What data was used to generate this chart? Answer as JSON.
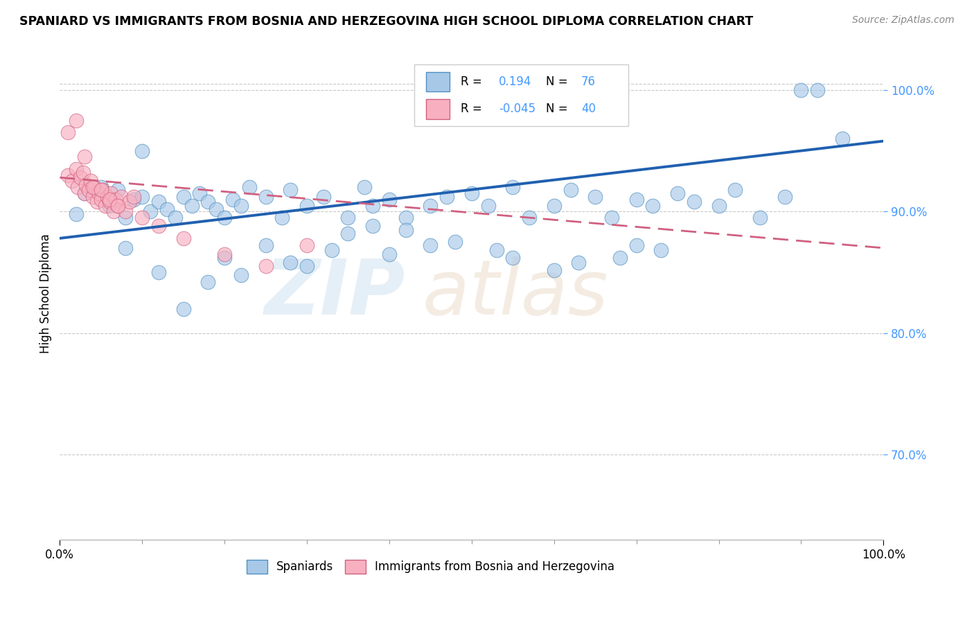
{
  "title": "SPANIARD VS IMMIGRANTS FROM BOSNIA AND HERZEGOVINA HIGH SCHOOL DIPLOMA CORRELATION CHART",
  "source": "Source: ZipAtlas.com",
  "ylabel": "High School Diploma",
  "xlim": [
    0.0,
    1.0
  ],
  "ylim": [
    0.63,
    1.035
  ],
  "yticks": [
    0.7,
    0.8,
    0.9,
    1.0
  ],
  "ytick_labels": [
    "70.0%",
    "80.0%",
    "90.0%",
    "100.0%"
  ],
  "xticks": [
    0.0,
    0.1,
    0.2,
    0.3,
    0.4,
    0.5,
    0.6,
    0.7,
    0.8,
    0.9,
    1.0
  ],
  "xtick_labels": [
    "0.0%",
    "",
    "",
    "",
    "",
    "",
    "",
    "",
    "",
    "",
    "100.0%"
  ],
  "legend_r_blue": "0.194",
  "legend_n_blue": "76",
  "legend_r_pink": "-0.045",
  "legend_n_pink": "40",
  "blue_scatter_color": "#a8c8e8",
  "blue_edge_color": "#5090c0",
  "blue_line_color": "#2060b0",
  "pink_scatter_color": "#f8b0c0",
  "pink_edge_color": "#d06080",
  "pink_line_color": "#d06080",
  "grid_color": "#c8c8c8",
  "tick_color": "#4499ff",
  "blue_x": [
    0.02,
    0.03,
    0.05,
    0.06,
    0.07,
    0.08,
    0.09,
    0.1,
    0.11,
    0.12,
    0.13,
    0.14,
    0.15,
    0.16,
    0.17,
    0.18,
    0.19,
    0.2,
    0.21,
    0.22,
    0.23,
    0.25,
    0.27,
    0.28,
    0.3,
    0.32,
    0.35,
    0.37,
    0.38,
    0.4,
    0.42,
    0.45,
    0.47,
    0.5,
    0.52,
    0.55,
    0.57,
    0.6,
    0.62,
    0.65,
    0.67,
    0.7,
    0.72,
    0.75,
    0.77,
    0.8,
    0.82,
    0.85,
    0.88,
    0.9,
    0.92,
    0.95,
    0.08,
    0.12,
    0.15,
    0.1,
    0.2,
    0.25,
    0.3,
    0.35,
    0.4,
    0.45,
    0.55,
    0.6,
    0.7,
    0.42,
    0.48,
    0.53,
    0.38,
    0.28,
    0.33,
    0.18,
    0.22,
    0.63,
    0.68,
    0.73
  ],
  "blue_y": [
    0.898,
    0.915,
    0.92,
    0.905,
    0.918,
    0.895,
    0.91,
    0.912,
    0.9,
    0.908,
    0.902,
    0.895,
    0.912,
    0.905,
    0.915,
    0.908,
    0.902,
    0.895,
    0.91,
    0.905,
    0.92,
    0.912,
    0.895,
    0.918,
    0.905,
    0.912,
    0.895,
    0.92,
    0.905,
    0.91,
    0.895,
    0.905,
    0.912,
    0.915,
    0.905,
    0.92,
    0.895,
    0.905,
    0.918,
    0.912,
    0.895,
    0.91,
    0.905,
    0.915,
    0.908,
    0.905,
    0.918,
    0.895,
    0.912,
    1.0,
    1.0,
    0.96,
    0.87,
    0.85,
    0.82,
    0.95,
    0.862,
    0.872,
    0.855,
    0.882,
    0.865,
    0.872,
    0.862,
    0.852,
    0.872,
    0.885,
    0.875,
    0.868,
    0.888,
    0.858,
    0.868,
    0.842,
    0.848,
    0.858,
    0.862,
    0.868
  ],
  "pink_x": [
    0.01,
    0.015,
    0.02,
    0.022,
    0.025,
    0.028,
    0.03,
    0.032,
    0.035,
    0.038,
    0.04,
    0.042,
    0.045,
    0.048,
    0.05,
    0.052,
    0.055,
    0.058,
    0.06,
    0.062,
    0.065,
    0.068,
    0.07,
    0.075,
    0.08,
    0.085,
    0.09,
    0.01,
    0.02,
    0.03,
    0.04,
    0.05,
    0.06,
    0.07,
    0.1,
    0.12,
    0.15,
    0.2,
    0.25,
    0.3
  ],
  "pink_y": [
    0.93,
    0.925,
    0.935,
    0.92,
    0.928,
    0.932,
    0.915,
    0.922,
    0.918,
    0.925,
    0.912,
    0.92,
    0.908,
    0.915,
    0.91,
    0.918,
    0.905,
    0.912,
    0.908,
    0.915,
    0.9,
    0.91,
    0.905,
    0.912,
    0.9,
    0.908,
    0.912,
    0.965,
    0.975,
    0.945,
    0.92,
    0.918,
    0.91,
    0.905,
    0.895,
    0.888,
    0.878,
    0.865,
    0.855,
    0.872
  ],
  "blue_trend_x0": 0.0,
  "blue_trend_y0": 0.878,
  "blue_trend_x1": 1.0,
  "blue_trend_y1": 0.958,
  "pink_trend_x0": 0.0,
  "pink_trend_y0": 0.928,
  "pink_trend_x1": 1.0,
  "pink_trend_y1": 0.87
}
